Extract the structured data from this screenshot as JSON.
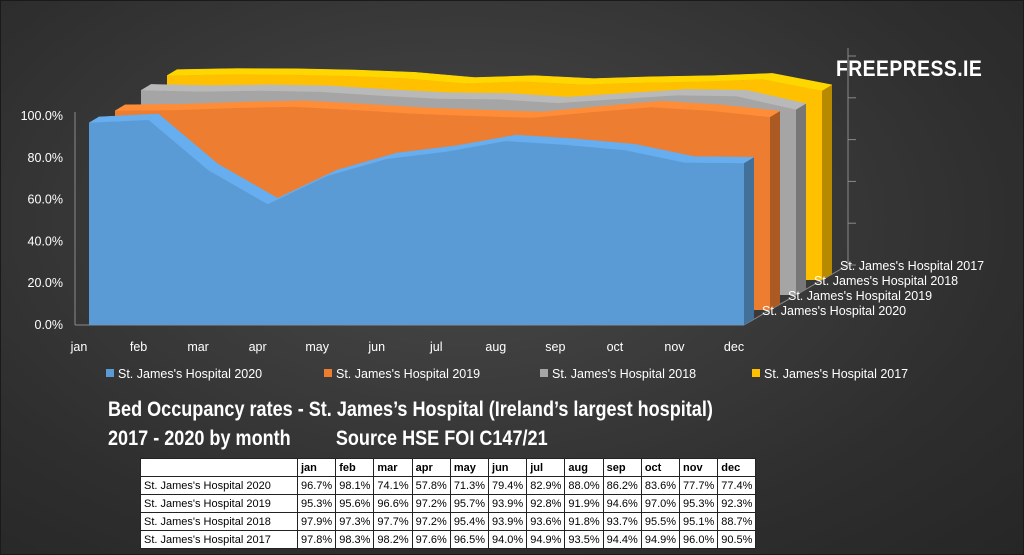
{
  "brand": "FREEPRESS.IE",
  "caption_line1": "Bed Occupancy rates - St. James’s Hospital (Ireland’s largest hospital)",
  "caption_line2": "2017 - 2020 by month         Source HSE FOI C147/21",
  "chart_data": {
    "type": "area",
    "style": "3d",
    "categories": [
      "jan",
      "feb",
      "mar",
      "apr",
      "may",
      "jun",
      "jul",
      "aug",
      "sep",
      "oct",
      "nov",
      "dec"
    ],
    "y_tick_labels": [
      "0.0%",
      "20.0%",
      "40.0%",
      "60.0%",
      "80.0%",
      "100.0%"
    ],
    "ylim": [
      0,
      1
    ],
    "legend_placement": "bottom",
    "series": [
      {
        "name": "St. James's Hospital 2020",
        "color": "#5b9bd5",
        "values": [
          96.7,
          98.1,
          74.1,
          57.8,
          71.3,
          79.4,
          82.9,
          88.0,
          86.2,
          83.6,
          77.7,
          77.4
        ]
      },
      {
        "name": "St. James's Hospital 2019",
        "color": "#ed7d31",
        "values": [
          95.3,
          95.6,
          96.6,
          97.2,
          95.7,
          93.9,
          92.8,
          91.9,
          94.6,
          97.0,
          95.3,
          92.3
        ]
      },
      {
        "name": "St. James's Hospital 2018",
        "color": "#a5a5a5",
        "values": [
          97.9,
          97.3,
          97.7,
          97.2,
          95.4,
          93.9,
          93.6,
          91.8,
          93.7,
          95.5,
          95.1,
          88.7
        ]
      },
      {
        "name": "St. James's Hospital 2017",
        "color": "#ffc000",
        "values": [
          97.8,
          98.3,
          98.2,
          97.6,
          96.5,
          94.0,
          94.9,
          93.5,
          94.4,
          94.9,
          96.0,
          90.5
        ]
      }
    ]
  },
  "table": {
    "headers": [
      "",
      "jan",
      "feb",
      "mar",
      "apr",
      "may",
      "jun",
      "jul",
      "aug",
      "sep",
      "oct",
      "nov",
      "dec"
    ],
    "rows": [
      {
        "label": "St. James's Hospital 2020",
        "cells": [
          "96.7%",
          "98.1%",
          "74.1%",
          "57.8%",
          "71.3%",
          "79.4%",
          "82.9%",
          "88.0%",
          "86.2%",
          "83.6%",
          "77.7%",
          "77.4%"
        ]
      },
      {
        "label": "St. James's Hospital 2019",
        "cells": [
          "95.3%",
          "95.6%",
          "96.6%",
          "97.2%",
          "95.7%",
          "93.9%",
          "92.8%",
          "91.9%",
          "94.6%",
          "97.0%",
          "95.3%",
          "92.3%"
        ]
      },
      {
        "label": "St. James's Hospital 2018",
        "cells": [
          "97.9%",
          "97.3%",
          "97.7%",
          "97.2%",
          "95.4%",
          "93.9%",
          "93.6%",
          "91.8%",
          "93.7%",
          "95.5%",
          "95.1%",
          "88.7%"
        ]
      },
      {
        "label": "St. James's Hospital 2017",
        "cells": [
          "97.8%",
          "98.3%",
          "98.2%",
          "97.6%",
          "96.5%",
          "94.0%",
          "94.9%",
          "93.5%",
          "94.4%",
          "94.9%",
          "96.0%",
          "90.5%"
        ]
      }
    ]
  }
}
